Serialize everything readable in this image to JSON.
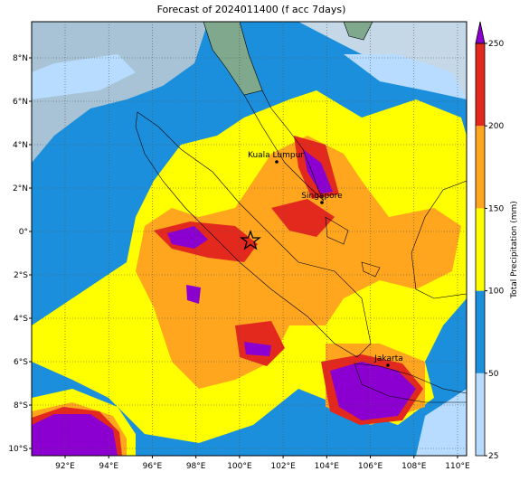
{
  "map": {
    "title": "Forecast of 2024011400 (f acc 7days)",
    "lon_ticks": [
      {
        "value": 92,
        "label": "92°E"
      },
      {
        "value": 94,
        "label": "94°E"
      },
      {
        "value": 96,
        "label": "96°E"
      },
      {
        "value": 98,
        "label": "98°E"
      },
      {
        "value": 100,
        "label": "100°E"
      },
      {
        "value": 102,
        "label": "102°E"
      },
      {
        "value": 104,
        "label": "104°E"
      },
      {
        "value": 106,
        "label": "106°E"
      },
      {
        "value": 108,
        "label": "108°E"
      },
      {
        "value": 110,
        "label": "110°E"
      }
    ],
    "lat_ticks": [
      {
        "value": 8,
        "label": "8°N"
      },
      {
        "value": 6,
        "label": "6°N"
      },
      {
        "value": 4,
        "label": "4°N"
      },
      {
        "value": 2,
        "label": "2°N"
      },
      {
        "value": 0,
        "label": "0°"
      },
      {
        "value": -2,
        "label": "2°S"
      },
      {
        "value": -4,
        "label": "4°S"
      },
      {
        "value": -6,
        "label": "6°S"
      },
      {
        "value": -8,
        "label": "8°S"
      },
      {
        "value": -10,
        "label": "10°S"
      }
    ],
    "cities": [
      "Kuala Lumpur",
      "Singapore",
      "Jakarta"
    ],
    "colorbar": {
      "label": "Total Precipitation (mm)",
      "levels": [
        25,
        50,
        100,
        150,
        200,
        250
      ],
      "colors": [
        "#b8dcff",
        "#1b8fdc",
        "#ffff00",
        "#ffa51e",
        "#e3281e"
      ],
      "extend_color": "#8b00d0"
    }
  }
}
